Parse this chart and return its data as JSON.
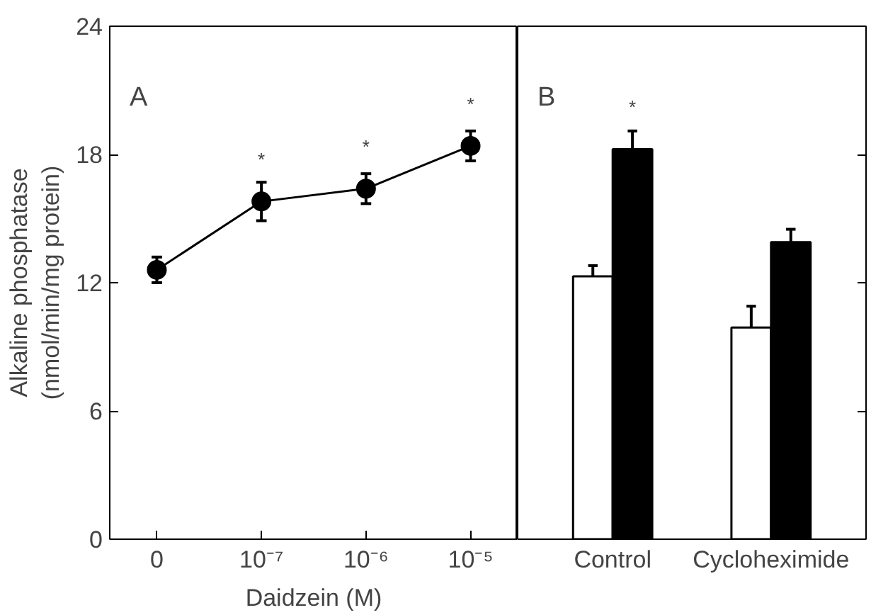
{
  "chart_data": [
    {
      "type": "line",
      "categories": [
        "0",
        "10⁻⁷",
        "10⁻⁶",
        "10⁻⁵"
      ],
      "xlabel": "Daidzein (M)",
      "ylabel": "Alkaline phosphatase\n(nmol/min/mg protein)",
      "ylim": [
        0,
        24
      ],
      "yticks": [
        0,
        6,
        12,
        18,
        24
      ],
      "marker": "circle",
      "line_style": "solid",
      "grid": false,
      "series": [
        {
          "color": "#000000",
          "values": [
            12.6,
            15.8,
            16.4,
            18.4
          ],
          "errors": [
            0.6,
            0.9,
            0.7,
            0.7
          ]
        }
      ],
      "annotations": [
        "A",
        {
          "text": "*",
          "x": "10⁻⁷",
          "y": 15.8
        },
        {
          "text": "*",
          "x": "10⁻⁶",
          "y": 16.4
        },
        {
          "text": "*",
          "x": "10⁻⁵",
          "y": 18.4
        }
      ]
    },
    {
      "type": "bar",
      "categories": [
        "Control",
        "Cycloheximide"
      ],
      "ylim": [
        0,
        24
      ],
      "yticks": [
        {
          "value": 0,
          "label": null
        },
        {
          "value": 6,
          "label": null
        },
        {
          "value": 12,
          "label": null
        },
        {
          "value": 18,
          "label": null
        },
        {
          "value": 24,
          "label": null
        }
      ],
      "tick_labels": "x",
      "grid": false,
      "series": [
        {
          "color": "#ffffff",
          "values": [
            12.3,
            9.9
          ],
          "errors": [
            [
              12.3,
              12.8
            ],
            [
              9.9,
              10.9
            ]
          ]
        },
        {
          "color": "#000000",
          "values": [
            18.25,
            13.9
          ],
          "errors": [
            [
              18.25,
              19.1
            ],
            [
              13.9,
              14.5
            ]
          ]
        }
      ],
      "annotations": [
        "B",
        {
          "text": "*",
          "x": "Control",
          "y": 18.25
        }
      ]
    }
  ]
}
